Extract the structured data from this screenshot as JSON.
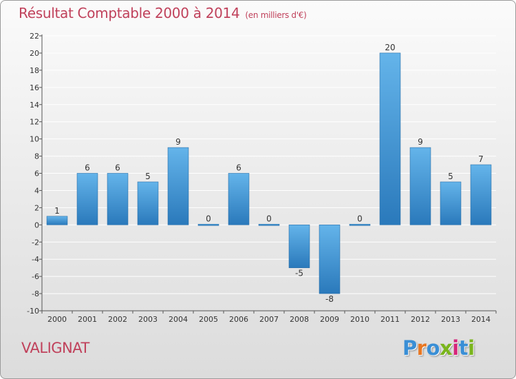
{
  "title": "Résultat Comptable 2000 à 2014",
  "unit_note": "(en milliers d'€)",
  "place_name": "VALIGNAT",
  "logo": {
    "text": "Proxiti",
    "letter_colors": [
      "#3a8fd6",
      "#e87722",
      "#3a8fd6",
      "#7ab51d",
      "#d6247a",
      "#3a8fd6",
      "#7ab51d"
    ]
  },
  "colors": {
    "bar_light": "#64b4ea",
    "bar_dark": "#2a79bb",
    "grid": "#ffffff",
    "axis": "#555555",
    "title": "#c0415b"
  },
  "chart_data": {
    "type": "bar",
    "categories": [
      "2000",
      "2001",
      "2002",
      "2003",
      "2004",
      "2005",
      "2006",
      "2007",
      "2008",
      "2009",
      "2010",
      "2011",
      "2012",
      "2013",
      "2014"
    ],
    "values": [
      1,
      6,
      6,
      5,
      9,
      0,
      6,
      0,
      -5,
      -8,
      0,
      20,
      9,
      5,
      7
    ],
    "data_labels": [
      "1",
      "6",
      "6",
      "5",
      "9",
      "0",
      "6",
      "0",
      "-5",
      "-8",
      "0",
      "20",
      "9",
      "5",
      "7"
    ],
    "ylim": [
      -10,
      22
    ],
    "yticks": [
      -10,
      -8,
      -6,
      -4,
      -2,
      0,
      2,
      4,
      6,
      8,
      10,
      12,
      14,
      16,
      18,
      20,
      22
    ],
    "ytick_labels": [
      "-10",
      "-8",
      "-6",
      "-4",
      "-2",
      "0",
      "2",
      "4",
      "6",
      "8",
      "10",
      "12",
      "14",
      "16",
      "18",
      "20",
      "22"
    ],
    "grid": true,
    "legend": "none"
  }
}
